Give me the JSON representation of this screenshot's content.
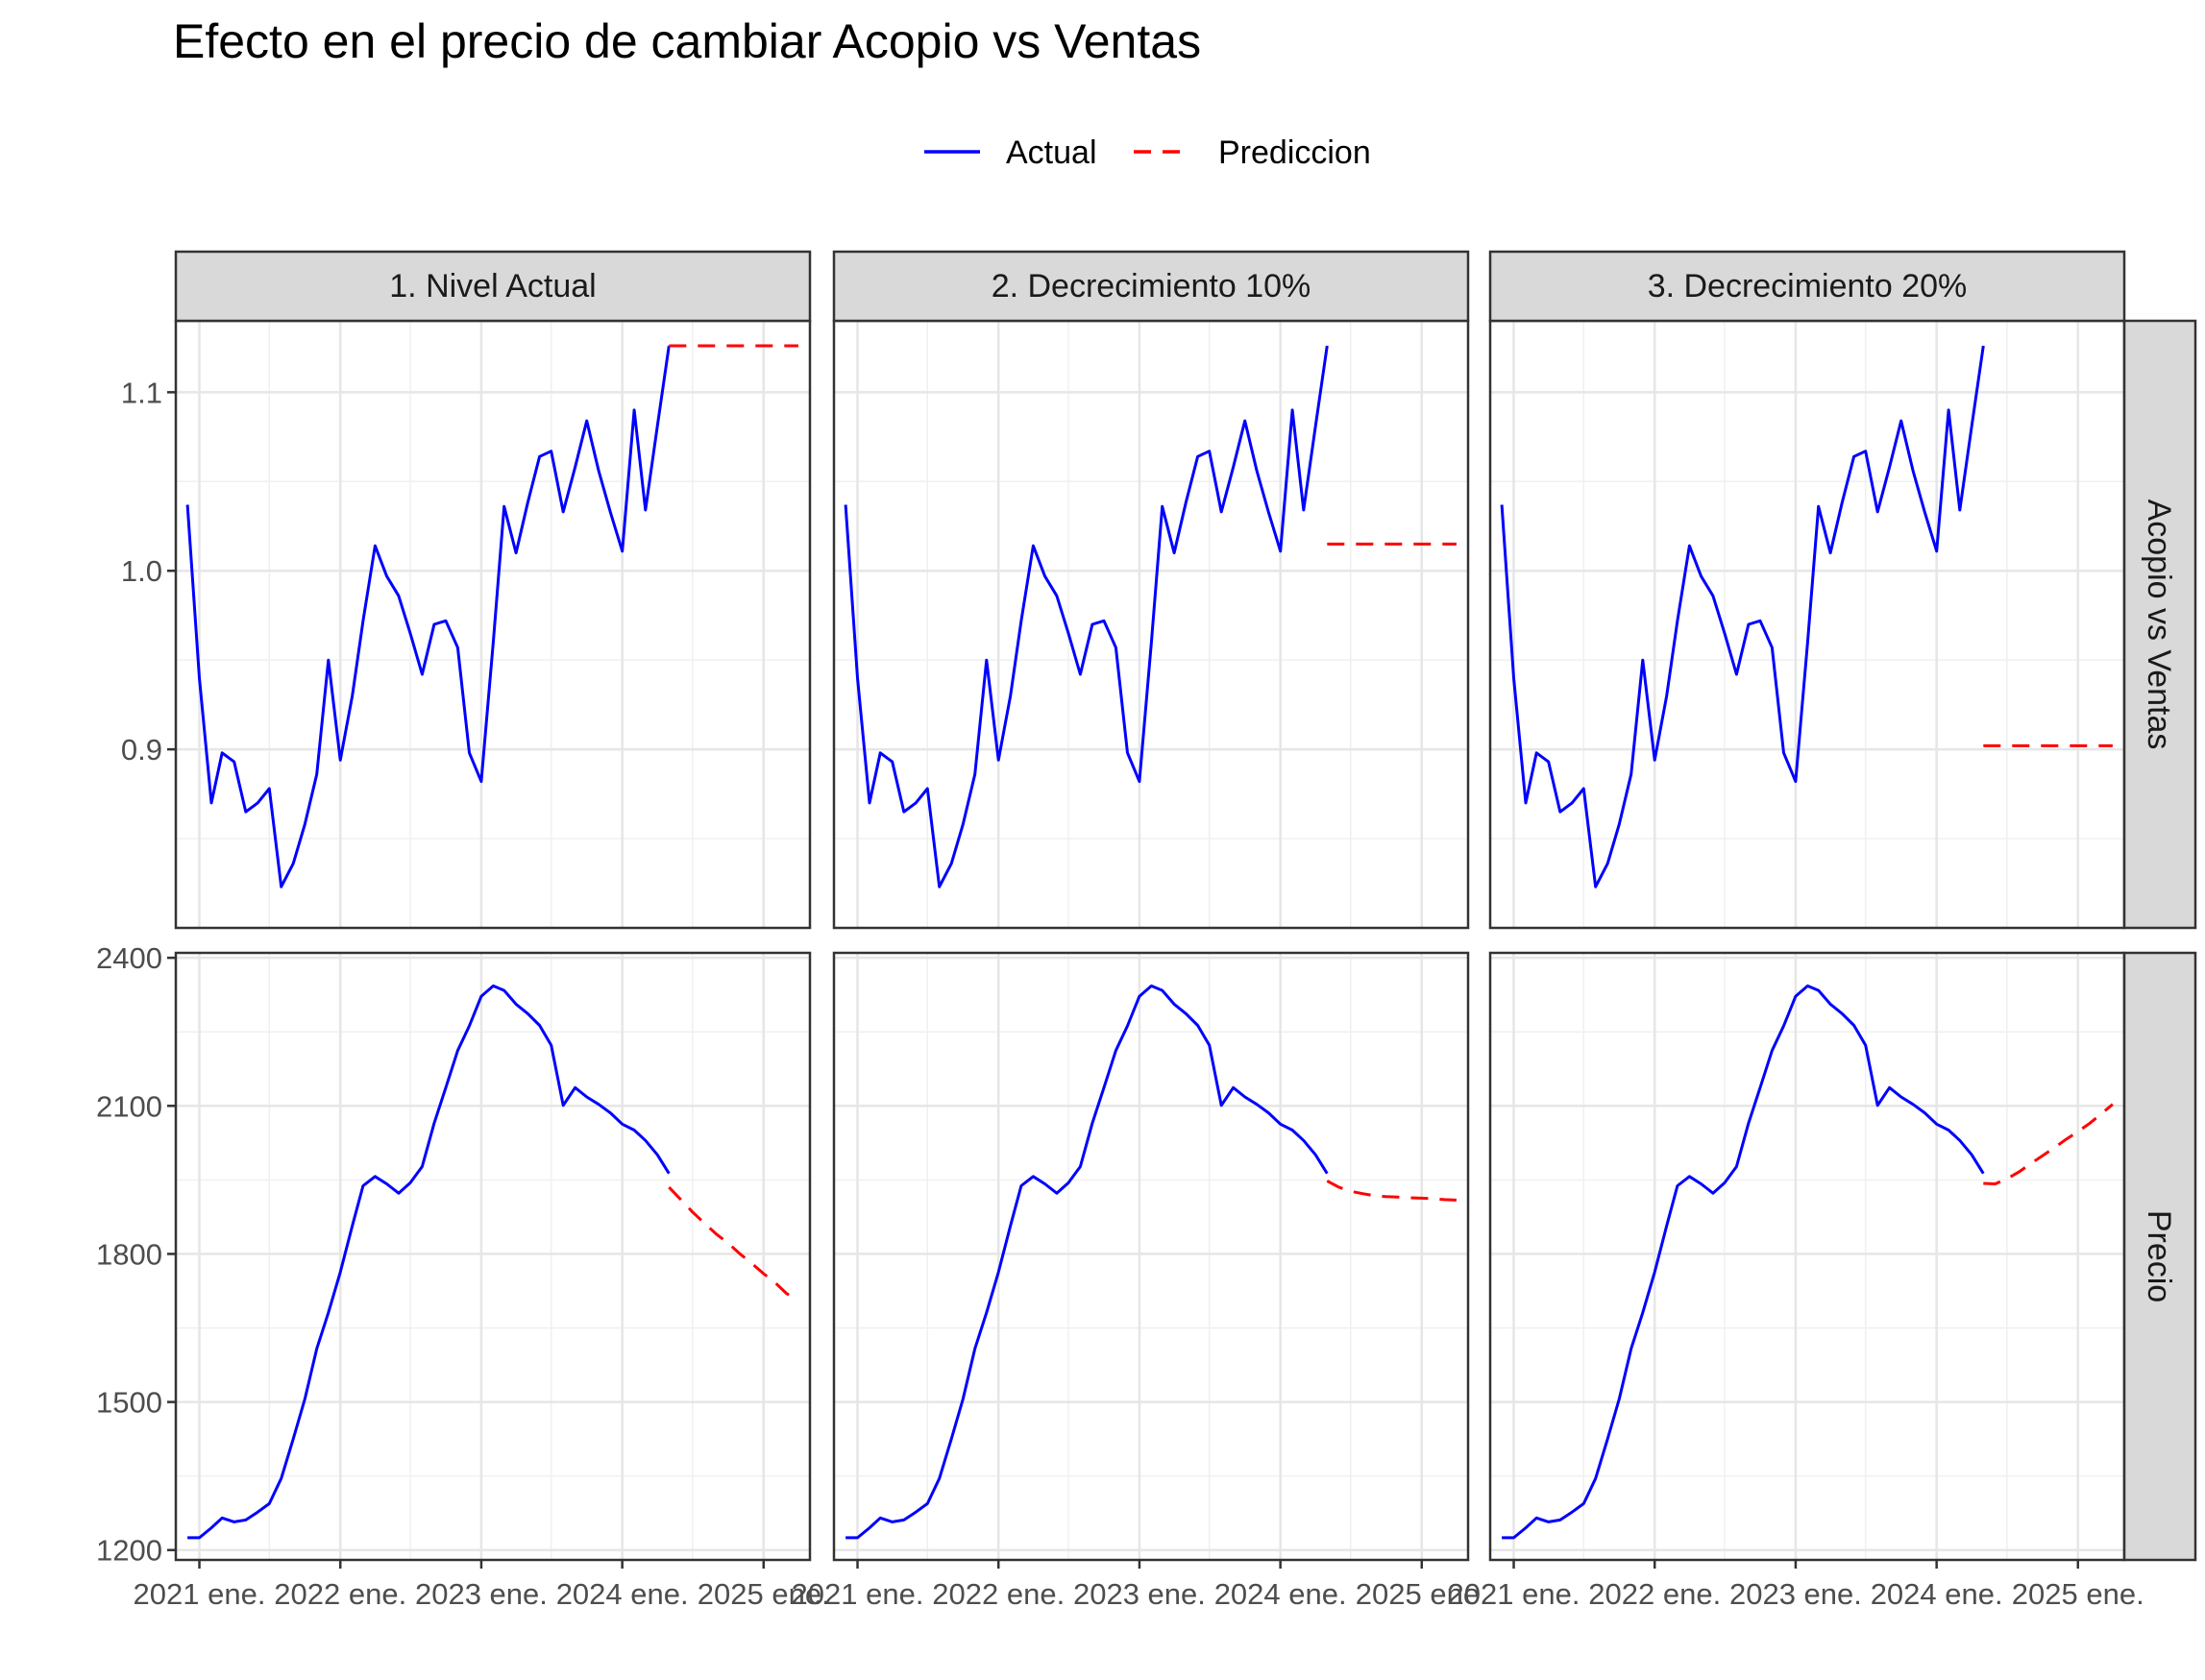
{
  "chart_data": {
    "type": "line",
    "title": "Efecto en el precio de cambiar Acopio vs Ventas",
    "legend": {
      "position": "top",
      "entries": [
        {
          "name": "Actual",
          "color": "#0000ff",
          "linetype": "solid"
        },
        {
          "name": "Prediccion",
          "color": "#ff0000",
          "linetype": "dashed"
        }
      ]
    },
    "grid": true,
    "facets": {
      "columns": [
        "1. Nivel Actual",
        "2. Decrecimiento 10%",
        "3. Decrecimiento 20%"
      ],
      "rows": [
        "Acopio vs Ventas",
        "Precio"
      ]
    },
    "x_axis": {
      "type": "date",
      "range": [
        "2020-11-01",
        "2025-05-01"
      ],
      "ticks": [
        "2021-01-01",
        "2022-01-01",
        "2023-01-01",
        "2024-01-01",
        "2025-01-01"
      ],
      "tick_labels": [
        "2021 ene.",
        "2022 ene.",
        "2023 ene.",
        "2024 ene.",
        "2025 ene."
      ]
    },
    "y_axes": {
      "Acopio vs Ventas": {
        "range": [
          0.8,
          1.14
        ],
        "ticks": [
          0.9,
          1.0,
          1.1
        ],
        "tick_labels": [
          "0.9",
          "1.0",
          "1.1"
        ]
      },
      "Precio": {
        "range": [
          1180,
          2410
        ],
        "ticks": [
          1200,
          1500,
          1800,
          2100,
          2400
        ],
        "tick_labels": [
          "1200",
          "1500",
          "1800",
          "2100",
          "2400"
        ]
      }
    },
    "actual": {
      "dates": [
        "2020-12-01",
        "2021-01-01",
        "2021-02-01",
        "2021-03-01",
        "2021-04-01",
        "2021-05-01",
        "2021-06-01",
        "2021-07-01",
        "2021-08-01",
        "2021-09-01",
        "2021-10-01",
        "2021-11-01",
        "2021-12-01",
        "2022-01-01",
        "2022-02-01",
        "2022-03-01",
        "2022-04-01",
        "2022-05-01",
        "2022-06-01",
        "2022-07-01",
        "2022-08-01",
        "2022-09-01",
        "2022-10-01",
        "2022-11-01",
        "2022-12-01",
        "2023-01-01",
        "2023-02-01",
        "2023-03-01",
        "2023-04-01",
        "2023-05-01",
        "2023-06-01",
        "2023-07-01",
        "2023-08-01",
        "2023-09-01",
        "2023-10-01",
        "2023-11-01",
        "2023-12-01",
        "2024-01-01",
        "2024-02-01",
        "2024-03-01",
        "2024-04-01",
        "2024-05-01"
      ],
      "acopio_vs_ventas": [
        1.037,
        0.94,
        0.87,
        0.898,
        0.893,
        0.865,
        0.87,
        0.878,
        0.823,
        0.836,
        0.858,
        0.886,
        0.95,
        0.894,
        0.93,
        0.972,
        1.014,
        0.997,
        0.986,
        0.965,
        0.942,
        0.97,
        0.972,
        0.957,
        0.898,
        0.882,
        0.96,
        1.036,
        1.01,
        1.038,
        1.064,
        1.067,
        1.033,
        1.058,
        1.084,
        1.056,
        1.033,
        1.011,
        1.09,
        1.034,
        1.081,
        1.126
      ],
      "precio": [
        1225,
        1225,
        1245,
        1265,
        1257,
        1261,
        1277,
        1294,
        1345,
        1425,
        1506,
        1608,
        1681,
        1763,
        1857,
        1938,
        1957,
        1942,
        1923,
        1944,
        1977,
        2065,
        2137,
        2212,
        2262,
        2322,
        2343,
        2334,
        2306,
        2287,
        2263,
        2223,
        2101,
        2137,
        2118,
        2103,
        2086,
        2063,
        2051,
        2030,
        2001,
        1963
      ]
    },
    "prediccion": {
      "1. Nivel Actual": {
        "dates": [
          "2024-05-01",
          "2024-06-01",
          "2024-07-01",
          "2024-08-01",
          "2024-09-01",
          "2024-10-01",
          "2024-11-01",
          "2024-12-01",
          "2025-01-01",
          "2025-02-01",
          "2025-03-01",
          "2025-04-01"
        ],
        "acopio_vs_ventas": [
          1.126,
          1.126,
          1.126,
          1.126,
          1.126,
          1.126,
          1.126,
          1.126,
          1.126,
          1.126,
          1.126,
          1.126
        ],
        "precio": [
          1935,
          1910,
          1885,
          1862,
          1840,
          1822,
          1800,
          1781,
          1760,
          1741,
          1720,
          1705
        ]
      },
      "2. Decrecimiento 10%": {
        "dates": [
          "2024-05-01",
          "2024-06-01",
          "2024-07-01",
          "2024-08-01",
          "2024-09-01",
          "2024-10-01",
          "2024-11-01",
          "2024-12-01",
          "2025-01-01",
          "2025-02-01",
          "2025-03-01",
          "2025-04-01"
        ],
        "acopio_vs_ventas": [
          1.015,
          1.015,
          1.015,
          1.015,
          1.015,
          1.015,
          1.015,
          1.015,
          1.015,
          1.015,
          1.015,
          1.015
        ],
        "precio": [
          1948,
          1935,
          1927,
          1922,
          1918,
          1916,
          1915,
          1914,
          1913,
          1912,
          1910,
          1909
        ]
      },
      "3. Decrecimiento 20%": {
        "dates": [
          "2024-05-01",
          "2024-06-01",
          "2024-07-01",
          "2024-08-01",
          "2024-09-01",
          "2024-10-01",
          "2024-11-01",
          "2024-12-01",
          "2025-01-01",
          "2025-02-01",
          "2025-03-01",
          "2025-04-01"
        ],
        "acopio_vs_ventas": [
          0.902,
          0.902,
          0.902,
          0.902,
          0.902,
          0.902,
          0.902,
          0.902,
          0.902,
          0.902,
          0.902,
          0.902
        ],
        "precio": [
          1943,
          1942,
          1952,
          1966,
          1983,
          1999,
          2015,
          2032,
          2048,
          2065,
          2083,
          2103
        ]
      }
    }
  }
}
